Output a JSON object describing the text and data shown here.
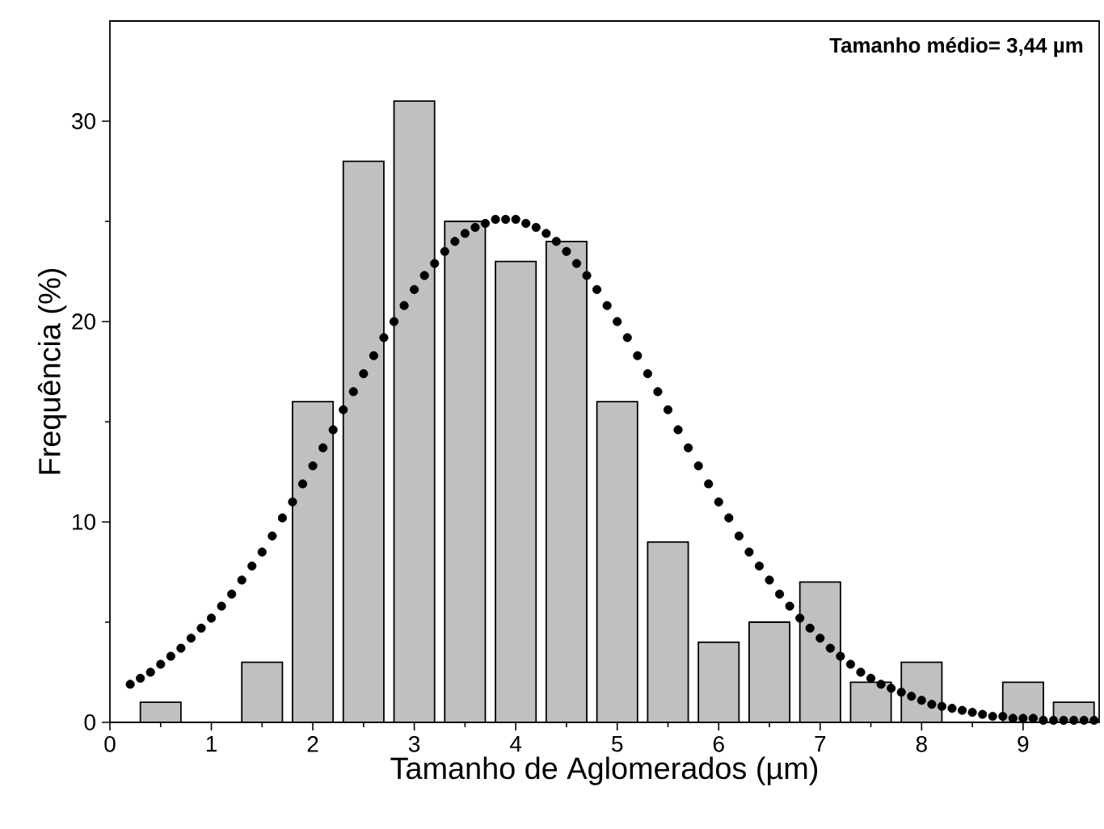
{
  "chart_data": {
    "type": "histogram",
    "xlabel": "Tamanho de Aglomerados (µm)",
    "ylabel": "Frequência (%)",
    "annotations": [
      "Tamanho médio= 3,44 µm"
    ],
    "bins": [
      0.25,
      0.75,
      1.25,
      1.75,
      2.25,
      2.75,
      3.25,
      3.75,
      4.25,
      4.75,
      5.25,
      5.75,
      6.25,
      6.75,
      7.25,
      7.75,
      8.25,
      8.75,
      9.25,
      9.75
    ],
    "values": [
      1,
      0,
      3,
      16,
      28,
      31,
      25,
      23,
      24,
      16,
      9,
      4,
      5,
      7,
      2,
      3,
      0,
      2,
      1
    ],
    "color": "#c0c0c0",
    "series": [
      {
        "type": "scatter",
        "color": "#000000",
        "marker": "circle",
        "x": [
          0.2,
          0.3,
          0.4,
          0.5,
          0.6,
          0.7,
          0.8,
          0.9,
          1.0,
          1.1,
          1.2,
          1.3,
          1.4,
          1.5,
          1.6,
          1.7,
          1.8,
          1.9,
          2.0,
          2.1,
          2.2,
          2.3,
          2.4,
          2.5,
          2.6,
          2.7,
          2.8,
          2.9,
          3.0,
          3.1,
          3.2,
          3.3,
          3.4,
          3.5,
          3.6,
          3.7,
          3.8,
          3.9,
          4.0,
          4.1,
          4.2,
          4.3,
          4.4,
          4.5,
          4.6,
          4.7,
          4.8,
          4.9,
          5.0,
          5.1,
          5.2,
          5.3,
          5.4,
          5.5,
          5.6,
          5.7,
          5.8,
          5.9,
          6.0,
          6.1,
          6.2,
          6.3,
          6.4,
          6.5,
          6.6,
          6.7,
          6.8,
          6.9,
          7.0,
          7.1,
          7.2,
          7.3,
          7.4,
          7.5,
          7.6,
          7.7,
          7.8,
          7.9,
          8.0,
          8.1,
          8.2,
          8.3,
          8.4,
          8.5,
          8.6,
          8.7,
          8.8,
          8.9,
          9.0,
          9.1,
          9.2,
          9.3,
          9.4,
          9.5,
          9.6,
          9.7
        ],
        "values": [
          1.9,
          2.2,
          2.5,
          2.9,
          3.3,
          3.7,
          4.2,
          4.7,
          5.2,
          5.8,
          6.4,
          7.1,
          7.8,
          8.5,
          9.3,
          10.2,
          11.0,
          11.9,
          12.8,
          13.7,
          14.6,
          15.6,
          16.5,
          17.4,
          18.3,
          19.2,
          20.0,
          20.8,
          21.6,
          22.3,
          22.9,
          23.5,
          24.0,
          24.4,
          24.7,
          24.9,
          25.1,
          25.1,
          25.1,
          24.9,
          24.7,
          24.4,
          24.0,
          23.5,
          22.9,
          22.3,
          21.6,
          20.8,
          20.0,
          19.2,
          18.3,
          17.4,
          16.5,
          15.6,
          14.6,
          13.7,
          12.8,
          11.9,
          11.0,
          10.2,
          9.3,
          8.5,
          7.8,
          7.1,
          6.4,
          5.8,
          5.2,
          4.7,
          4.2,
          3.7,
          3.3,
          2.9,
          2.5,
          2.2,
          1.9,
          1.7,
          1.5,
          1.3,
          1.1,
          0.9,
          0.8,
          0.7,
          0.6,
          0.5,
          0.4,
          0.3,
          0.3,
          0.2,
          0.2,
          0.2,
          0.1,
          0.1,
          0.1,
          0.1,
          0.1,
          0.1
        ]
      }
    ],
    "xlim": [
      0,
      9.75
    ],
    "ylim": [
      0,
      35
    ],
    "xticks": [
      0,
      1,
      2,
      3,
      4,
      5,
      6,
      7,
      8,
      9
    ],
    "yticks": [
      0,
      10,
      20,
      30
    ]
  }
}
